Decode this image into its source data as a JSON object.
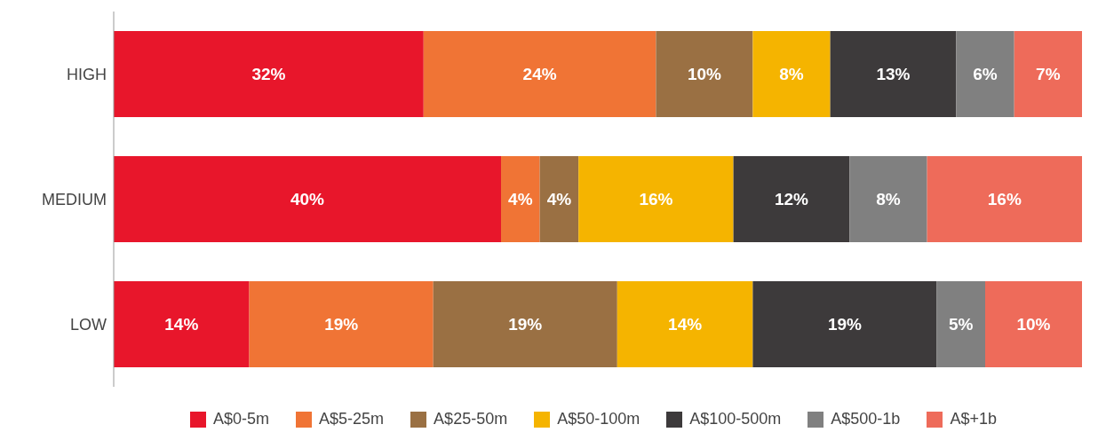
{
  "chart_data": {
    "type": "bar",
    "orientation": "horizontal",
    "stacked": true,
    "categories": [
      "HIGH",
      "MEDIUM",
      "LOW"
    ],
    "series": [
      {
        "name": "A$0-5m",
        "color": "#e8162b",
        "values": [
          32,
          40,
          14
        ],
        "value_labels": [
          "32%",
          "40%",
          "14%"
        ]
      },
      {
        "name": "A$5-25m",
        "color": "#f07435",
        "values": [
          24,
          4,
          19
        ],
        "value_labels": [
          "24%",
          "4%",
          "19%"
        ]
      },
      {
        "name": "A$25-50m",
        "color": "#9a7043",
        "values": [
          10,
          4,
          19
        ],
        "value_labels": [
          "10%",
          "4%",
          "19%"
        ]
      },
      {
        "name": "A$50-100m",
        "color": "#f5b400",
        "values": [
          8,
          16,
          14
        ],
        "value_labels": [
          "8%",
          "16%",
          "14%"
        ]
      },
      {
        "name": "A$100-500m",
        "color": "#3d3a3b",
        "values": [
          13,
          12,
          19
        ],
        "value_labels": [
          "13%",
          "12%",
          "19%"
        ]
      },
      {
        "name": "A$500-1b",
        "color": "#808080",
        "values": [
          6,
          8,
          5
        ],
        "value_labels": [
          "6%",
          "8%",
          "5%"
        ]
      },
      {
        "name": "A$+1b",
        "color": "#ee6b5a",
        "values": [
          7,
          16,
          10
        ],
        "value_labels": [
          "7%",
          "16%",
          "10%"
        ]
      }
    ],
    "legend": "bottom"
  }
}
